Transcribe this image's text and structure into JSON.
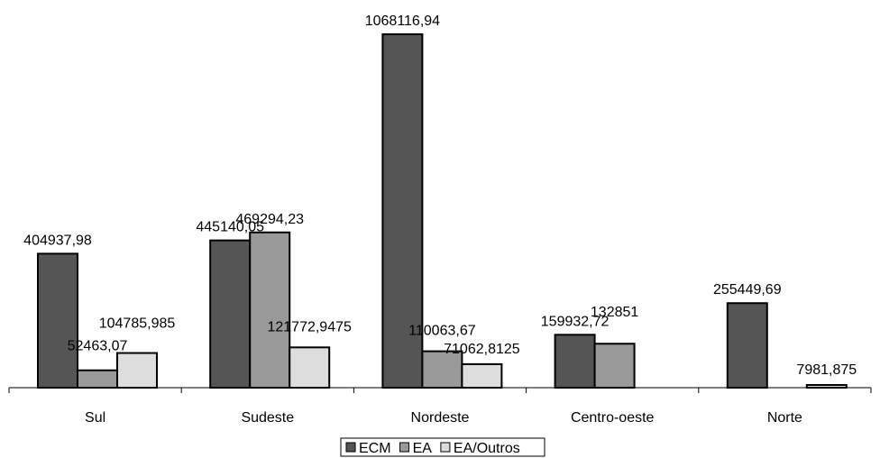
{
  "chart_data": {
    "type": "bar",
    "categories": [
      "Sul",
      "Sudeste",
      "Nordeste",
      "Centro-oeste",
      "Norte"
    ],
    "series": [
      {
        "name": "ECM",
        "color": "#555555",
        "values": [
          404937.98,
          445140.05,
          1068116.94,
          159932.72,
          255449.69
        ],
        "labels": [
          "404937,98",
          "445140,05",
          "1068116,94",
          "159932,72",
          "255449,69"
        ]
      },
      {
        "name": "EA",
        "color": "#999999",
        "values": [
          52463.07,
          469294.23,
          110063.67,
          132851,
          null
        ],
        "labels": [
          "52463,07",
          "469294,23",
          "110063,67",
          "132851",
          null
        ]
      },
      {
        "name": "EA/Outros",
        "color": "#dddddd",
        "values": [
          104785.985,
          121772.9475,
          71062.8125,
          null,
          7981.875
        ],
        "labels": [
          "104785,985",
          "121772,9475",
          "71062,8125",
          null,
          "7981,875"
        ]
      }
    ],
    "ylim": [
      0,
      1068116.94
    ],
    "grid": false,
    "legend": "bottom",
    "title": "",
    "xlabel": "",
    "ylabel": ""
  }
}
